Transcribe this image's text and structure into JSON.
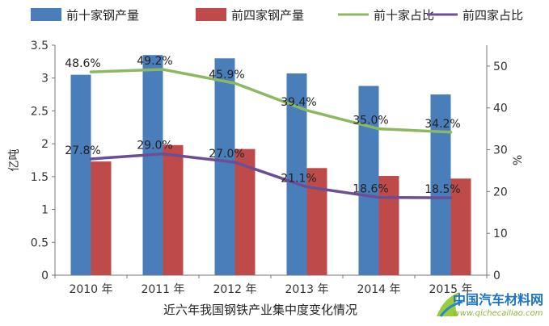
{
  "chart_data": {
    "type": "bar",
    "title": "近六年我国钢铁产业集中度变化情况",
    "categories": [
      "2010 年",
      "2011 年",
      "2012 年",
      "2013 年",
      "2014 年",
      "2015 年"
    ],
    "series": [
      {
        "name": "前十家钢产量",
        "kind": "bar",
        "axis": "left",
        "color": "#4a7ebb",
        "values": [
          3.05,
          3.35,
          3.3,
          3.07,
          2.88,
          2.75
        ]
      },
      {
        "name": "前四家钢产量",
        "kind": "bar",
        "axis": "left",
        "color": "#bf4a4a",
        "values": [
          1.73,
          1.98,
          1.92,
          1.63,
          1.51,
          1.47
        ]
      },
      {
        "name": "前十家占比",
        "kind": "line",
        "axis": "right",
        "color": "#8db862",
        "values": [
          48.6,
          49.2,
          45.9,
          39.4,
          35.0,
          34.2
        ],
        "labels": [
          "48.6%",
          "49.2%",
          "45.9%",
          "39.4%",
          "35.0%",
          "34.2%"
        ]
      },
      {
        "name": "前四家占比",
        "kind": "line",
        "axis": "right",
        "color": "#6a4f96",
        "values": [
          27.8,
          29.0,
          27.0,
          21.1,
          18.6,
          18.5
        ],
        "labels": [
          "27.8%",
          "29.0%",
          "27.0%",
          "21.1%",
          "18.6%",
          "18.5%"
        ]
      }
    ],
    "ylabel": "亿吨",
    "y2label": "%",
    "ylim": [
      0,
      3.5
    ],
    "y2lim": [
      0,
      55
    ],
    "yticks": [
      "0",
      "0.5",
      "1",
      "1.5",
      "2",
      "2.5",
      "3",
      "3.5"
    ],
    "y2ticks": [
      "0",
      "10",
      "20",
      "30",
      "40",
      "50"
    ],
    "legend": "top",
    "grid": false
  },
  "watermark": {
    "text": "中国汽车材料网",
    "url": "www.qichecailiao.com"
  }
}
